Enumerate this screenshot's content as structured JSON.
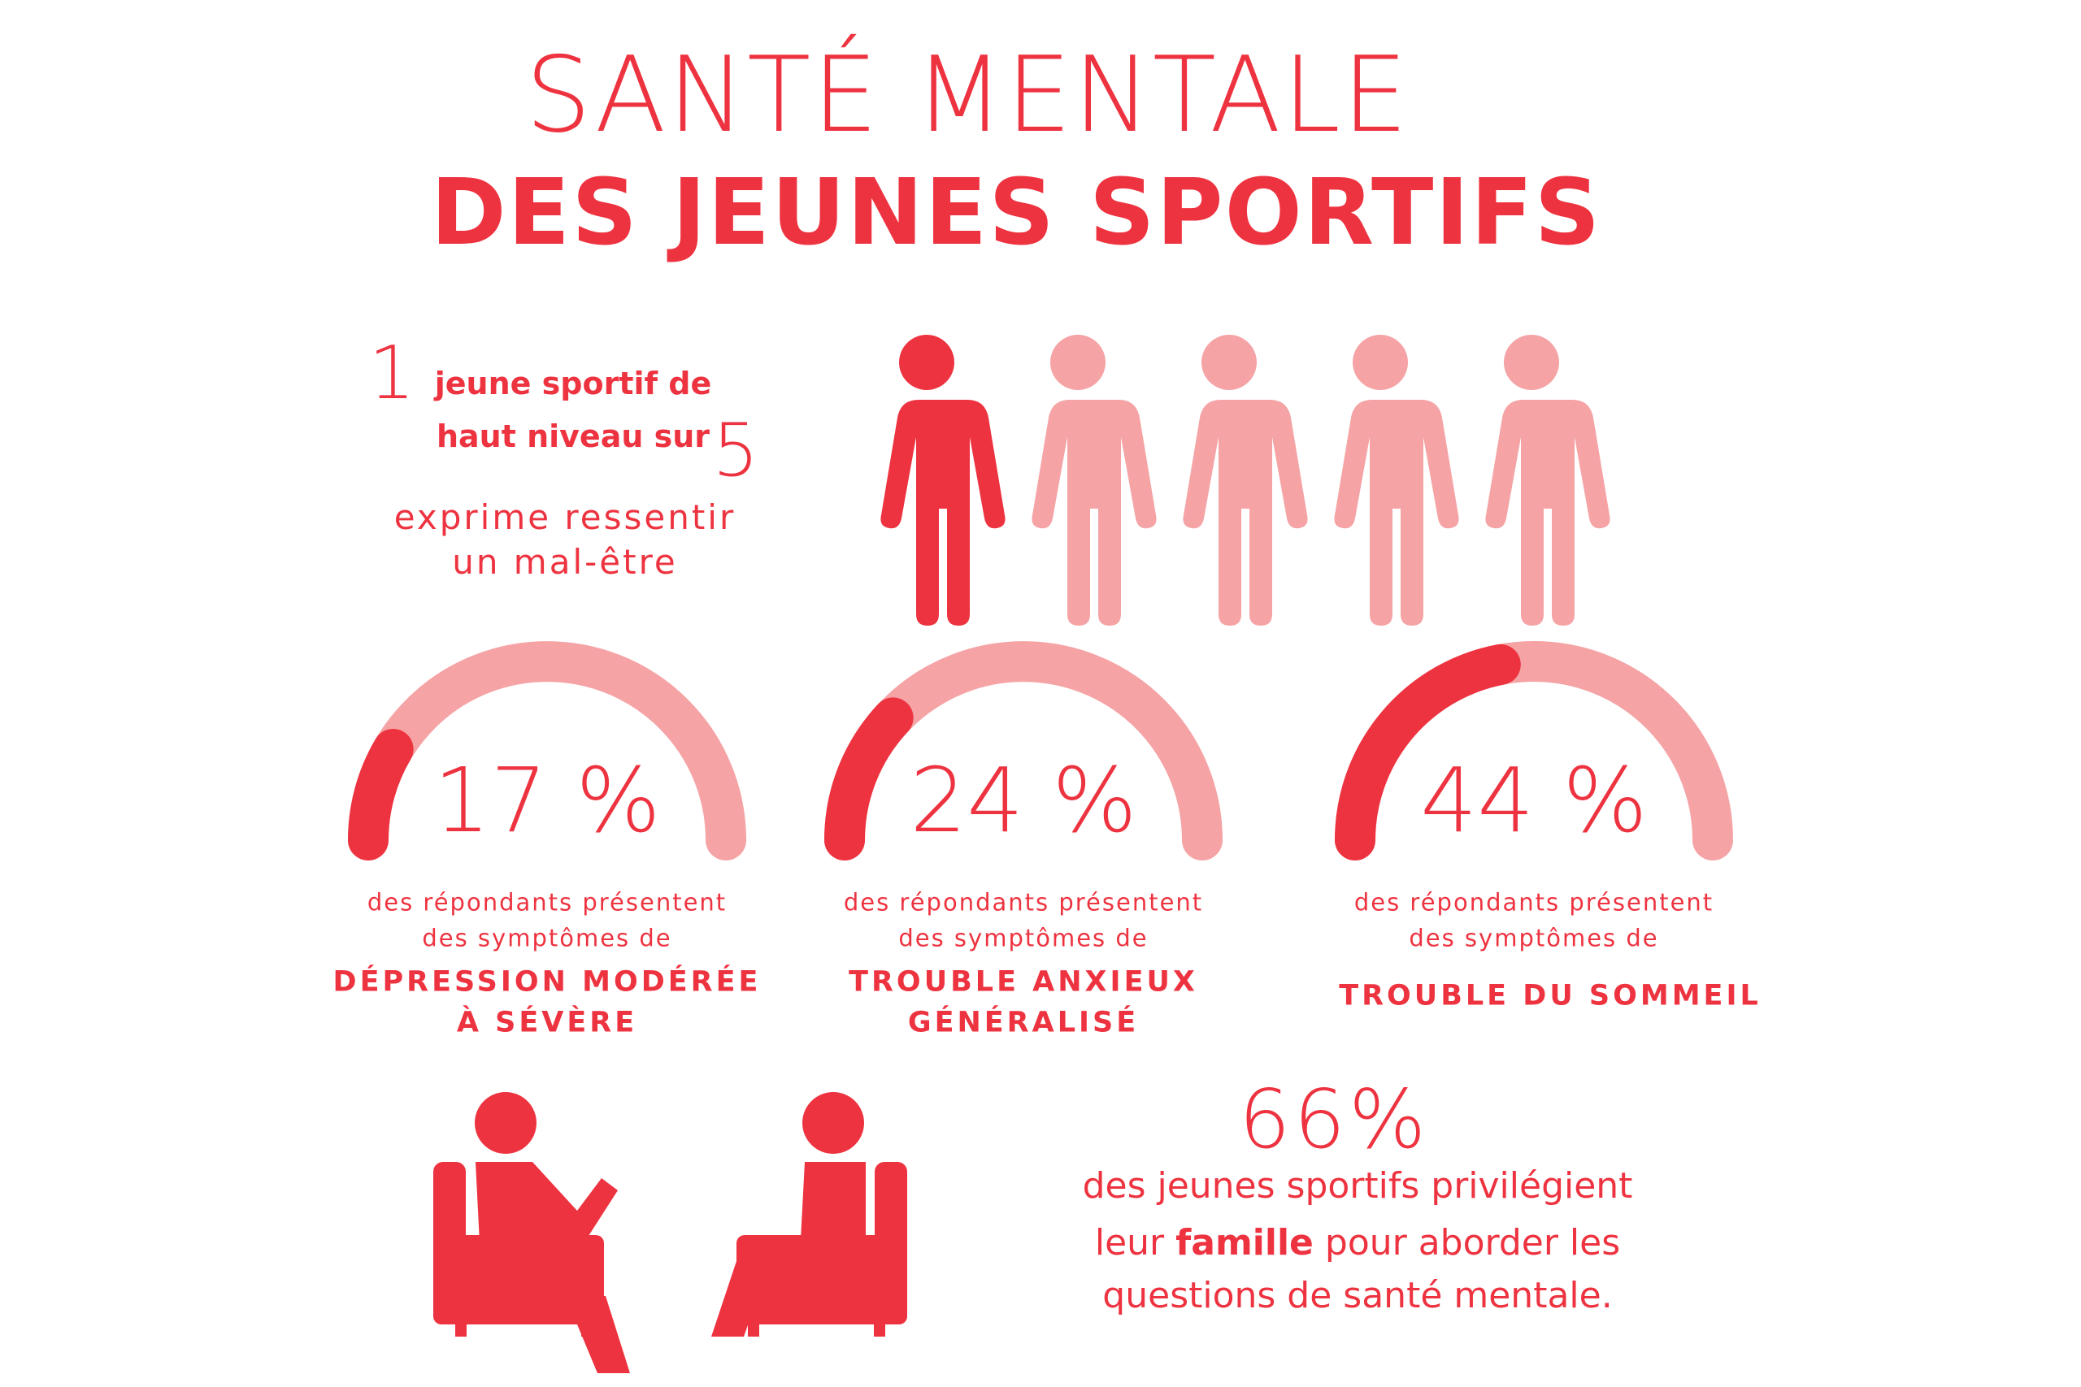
{
  "title": {
    "line1": "SANTÉ MENTALE",
    "line2": "DES JEUNES SPORTIFS"
  },
  "ratio": {
    "numerator": 1,
    "text1": "jeune sportif de",
    "text2": "haut niveau sur",
    "denominator": 5,
    "caption": [
      "exprime ressentir",
      "un mal-être"
    ]
  },
  "gauges": [
    {
      "value": 17,
      "label": "17 %",
      "caption": [
        "des répondants présentent",
        "des symptômes de"
      ],
      "heading": [
        "DÉPRESSION MODÉRÉE",
        "À SÉVÈRE"
      ]
    },
    {
      "value": 24,
      "label": "24 %",
      "caption": [
        "des répondants présentent",
        "des symptômes de"
      ],
      "heading": [
        "TROUBLE ANXIEUX",
        "GÉNÉRALISÉ"
      ]
    },
    {
      "value": 44,
      "label": "44 %",
      "caption": [
        "des répondants présentent",
        "des symptômes de"
      ],
      "heading": [
        "TROUBLE DU SOMMEIL"
      ]
    }
  ],
  "family": {
    "figure": "66%",
    "line1": "des jeunes sportifs privilégient",
    "line2_before": "leur",
    "line2_bold": "famille",
    "line2_after": "pour aborder les",
    "line3": "questions de santé mentale."
  }
}
